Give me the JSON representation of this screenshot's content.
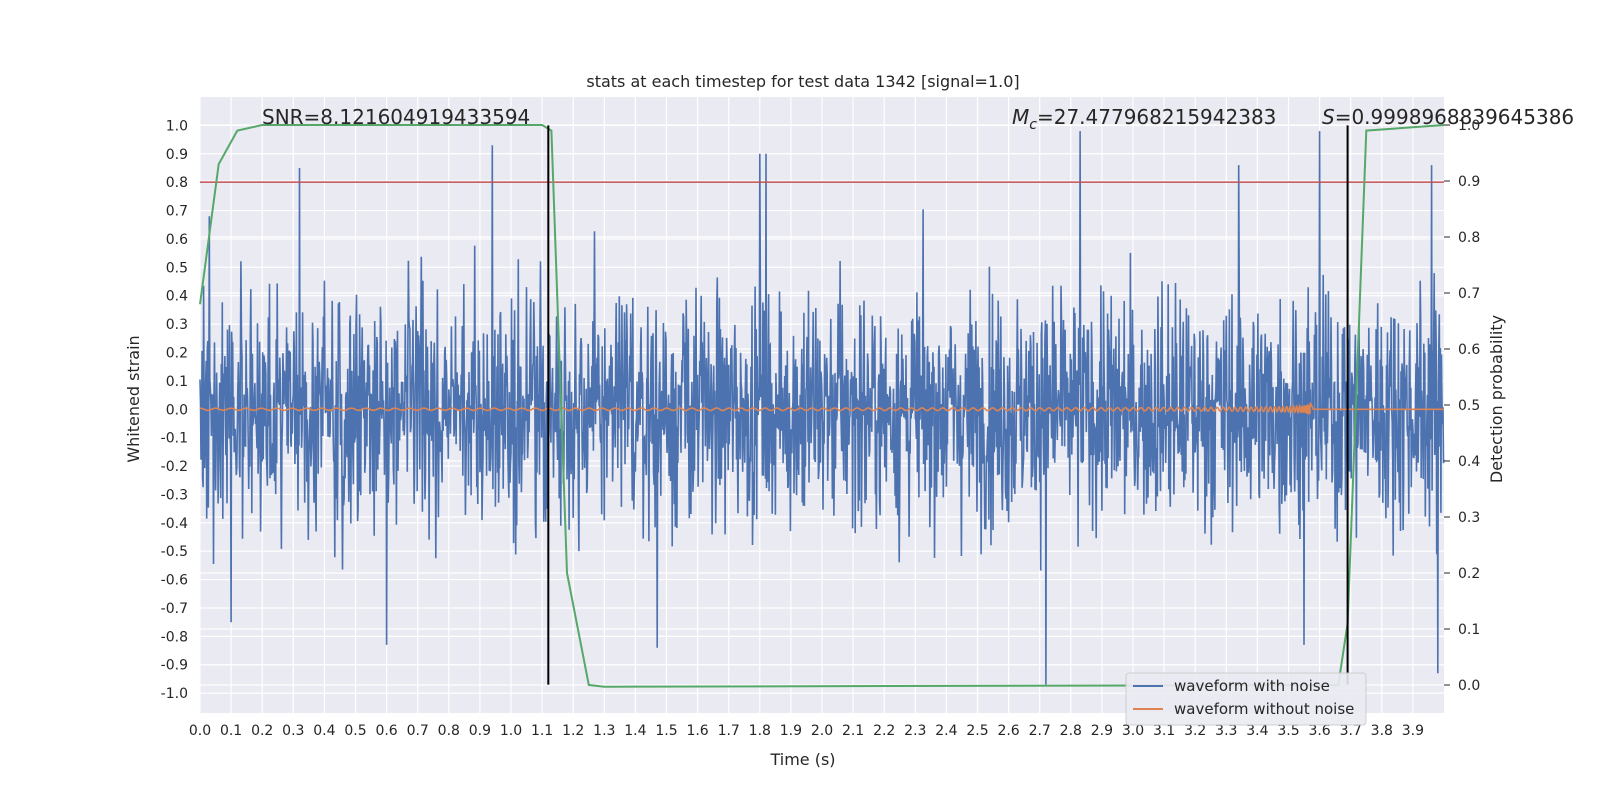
{
  "chart_data": {
    "type": "line",
    "title": "stats at each timestep for test data 1342 [signal=1.0]",
    "xlabel": "Time (s)",
    "ylabel": "Whitened strain",
    "y2label": "Detection probability",
    "xlim": [
      0.0,
      4.0
    ],
    "ylim": [
      -1.07,
      1.1
    ],
    "y2lim": [
      -0.05,
      1.05
    ],
    "grid": true,
    "legend_position": "lower-right",
    "x_ticks": [
      "0.0",
      "0.1",
      "0.2",
      "0.3",
      "0.4",
      "0.5",
      "0.6",
      "0.7",
      "0.8",
      "0.9",
      "1.0",
      "1.1",
      "1.2",
      "1.3",
      "1.4",
      "1.5",
      "1.6",
      "1.7",
      "1.8",
      "1.9",
      "2.0",
      "2.1",
      "2.2",
      "2.3",
      "2.4",
      "2.5",
      "2.6",
      "2.7",
      "2.8",
      "2.9",
      "3.0",
      "3.1",
      "3.2",
      "3.3",
      "3.4",
      "3.5",
      "3.6",
      "3.7",
      "3.8",
      "3.9"
    ],
    "y_ticks": [
      "1.0",
      "0.9",
      "0.8",
      "0.7",
      "0.6",
      "0.5",
      "0.4",
      "0.3",
      "0.2",
      "0.1",
      "0.0",
      "-0.1",
      "-0.2",
      "-0.3",
      "-0.4",
      "-0.5",
      "-0.6",
      "-0.7",
      "-0.8",
      "-0.9",
      "-1.0"
    ],
    "y2_ticks": [
      "1.0",
      "0.9",
      "0.8",
      "0.7",
      "0.6",
      "0.5",
      "0.4",
      "0.3",
      "0.2",
      "0.1",
      "0.0"
    ],
    "annotations": {
      "snr": "SNR=8.121604919433594",
      "mc_symbol": "M",
      "mc_sub": "c",
      "mc_value": "=27.477968215942383",
      "s_symbol": "S",
      "s_value": "=0.9998968839645386"
    },
    "series": [
      {
        "name": "waveform with noise",
        "color": "#4c72b0",
        "kind": "noise",
        "sigma": 0.2,
        "peaks": [
          [
            0.03,
            0.68
          ],
          [
            0.1,
            -0.75
          ],
          [
            0.32,
            0.85
          ],
          [
            0.6,
            -0.83
          ],
          [
            0.94,
            0.93
          ],
          [
            1.8,
            0.9
          ],
          [
            1.82,
            0.9
          ],
          [
            2.72,
            -0.97
          ],
          [
            2.83,
            0.98
          ],
          [
            3.34,
            0.86
          ],
          [
            3.6,
            0.98
          ],
          [
            3.96,
            0.86
          ],
          [
            3.98,
            -0.93
          ],
          [
            1.47,
            -0.84
          ],
          [
            3.55,
            -0.83
          ]
        ]
      },
      {
        "name": "waveform without noise",
        "color": "#dd8452",
        "kind": "chirp",
        "t_merge": 3.57,
        "f0": 20,
        "a0": 0.006
      },
      {
        "name": "detection probability",
        "color": "#55a868",
        "axis": "right",
        "x": [
          0.0,
          0.06,
          0.12,
          0.2,
          1.1,
          1.13,
          1.18,
          1.25,
          1.3,
          3.66,
          3.69,
          3.75,
          4.0
        ],
        "y": [
          0.68,
          0.93,
          0.99,
          1.0,
          1.0,
          0.99,
          0.2,
          0.0,
          -0.003,
          0.0,
          0.11,
          0.99,
          1.0
        ]
      }
    ],
    "threshold": {
      "value": 0.8,
      "color": "#c44e52"
    },
    "vertical_markers": [
      1.12,
      3.69
    ]
  }
}
